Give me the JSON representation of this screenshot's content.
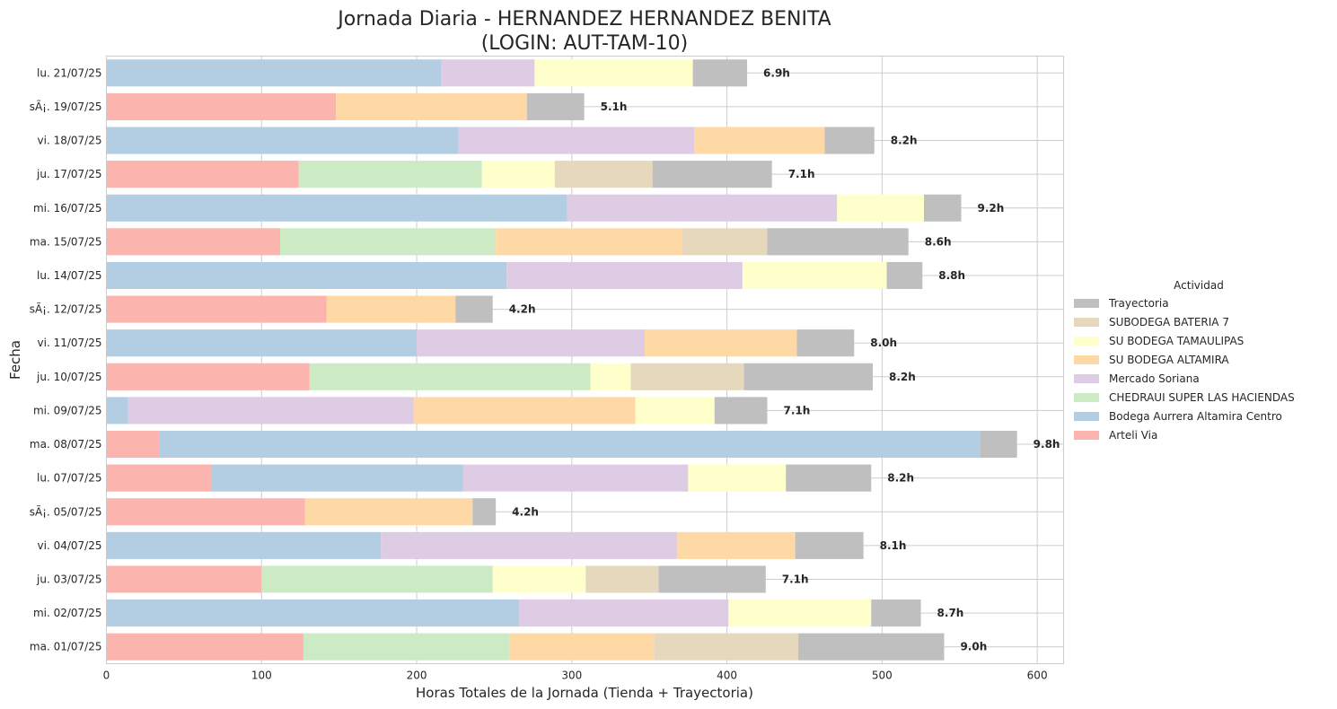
{
  "chart_data": {
    "type": "bar",
    "orientation": "horizontal",
    "stacked": true,
    "title_line1": "Jornada Diaria - HERNANDEZ HERNANDEZ BENITA",
    "title_line2": "(LOGIN: AUT-TAM-10)",
    "xlabel": "Horas Totales de la Jornada (Tienda + Trayectoria)",
    "ylabel": "Fecha",
    "xlim": [
      0,
      617
    ],
    "xticks": [
      0,
      100,
      200,
      300,
      400,
      500,
      600
    ],
    "grid": true,
    "legend_title": "Actividad",
    "legend_position": "right",
    "categories": [
      "lu. 21/07/25",
      "sÃ¡. 19/07/25",
      "vi. 18/07/25",
      "ju. 17/07/25",
      "mi. 16/07/25",
      "ma. 15/07/25",
      "lu. 14/07/25",
      "sÃ¡. 12/07/25",
      "vi. 11/07/25",
      "ju. 10/07/25",
      "mi. 09/07/25",
      "ma. 08/07/25",
      "lu. 07/07/25",
      "sÃ¡. 05/07/25",
      "vi. 04/07/25",
      "ju. 03/07/25",
      "mi. 02/07/25",
      "ma. 01/07/25"
    ],
    "totals": [
      "6.9h",
      "5.1h",
      "8.2h",
      "7.1h",
      "9.2h",
      "8.6h",
      "8.8h",
      "4.2h",
      "8.0h",
      "8.2h",
      "7.1h",
      "9.8h",
      "8.2h",
      "4.2h",
      "8.1h",
      "7.1h",
      "8.7h",
      "9.0h"
    ],
    "series": [
      {
        "name": "Arteli Via",
        "color": "#fbb4ae",
        "values": [
          0,
          148,
          0,
          124,
          0,
          112,
          0,
          142,
          0,
          131,
          0,
          34,
          68,
          128,
          0,
          100,
          0,
          127
        ]
      },
      {
        "name": "Bodega Aurrera Altamira Centro",
        "color": "#b3cde3",
        "values": [
          216,
          0,
          227,
          0,
          297,
          0,
          258,
          0,
          200,
          0,
          14,
          529,
          162,
          0,
          177,
          0,
          266,
          0
        ]
      },
      {
        "name": "CHEDRAUI SUPER LAS HACIENDAS",
        "color": "#ccebc5",
        "values": [
          0,
          0,
          0,
          118,
          0,
          139,
          0,
          0,
          0,
          181,
          0,
          0,
          0,
          0,
          0,
          149,
          0,
          133
        ]
      },
      {
        "name": "Mercado Soriana",
        "color": "#decbe4",
        "values": [
          60,
          0,
          152,
          0,
          174,
          0,
          152,
          0,
          147,
          0,
          184,
          0,
          145,
          0,
          191,
          0,
          135,
          0
        ]
      },
      {
        "name": "SU BODEGA ALTAMIRA",
        "color": "#fed9a6",
        "values": [
          0,
          123,
          84,
          0,
          0,
          120,
          0,
          83,
          98,
          0,
          143,
          0,
          0,
          108,
          76,
          0,
          0,
          93
        ]
      },
      {
        "name": "SU BODEGA TAMAULIPAS",
        "color": "#ffffcc",
        "values": [
          102,
          0,
          0,
          47,
          56,
          0,
          93,
          0,
          0,
          26,
          51,
          0,
          63,
          0,
          0,
          60,
          92,
          0
        ]
      },
      {
        "name": "SUBODEGA BATERIA 7",
        "color": "#e5d8bd",
        "values": [
          0,
          0,
          0,
          63,
          0,
          55,
          0,
          0,
          0,
          73,
          0,
          0,
          0,
          0,
          0,
          47,
          0,
          93
        ]
      },
      {
        "name": "Trayectoria",
        "color": "#bfbfbf",
        "values": [
          35,
          37,
          32,
          77,
          24,
          91,
          23,
          24,
          37,
          83,
          34,
          24,
          55,
          15,
          44,
          69,
          32,
          94
        ]
      }
    ]
  }
}
